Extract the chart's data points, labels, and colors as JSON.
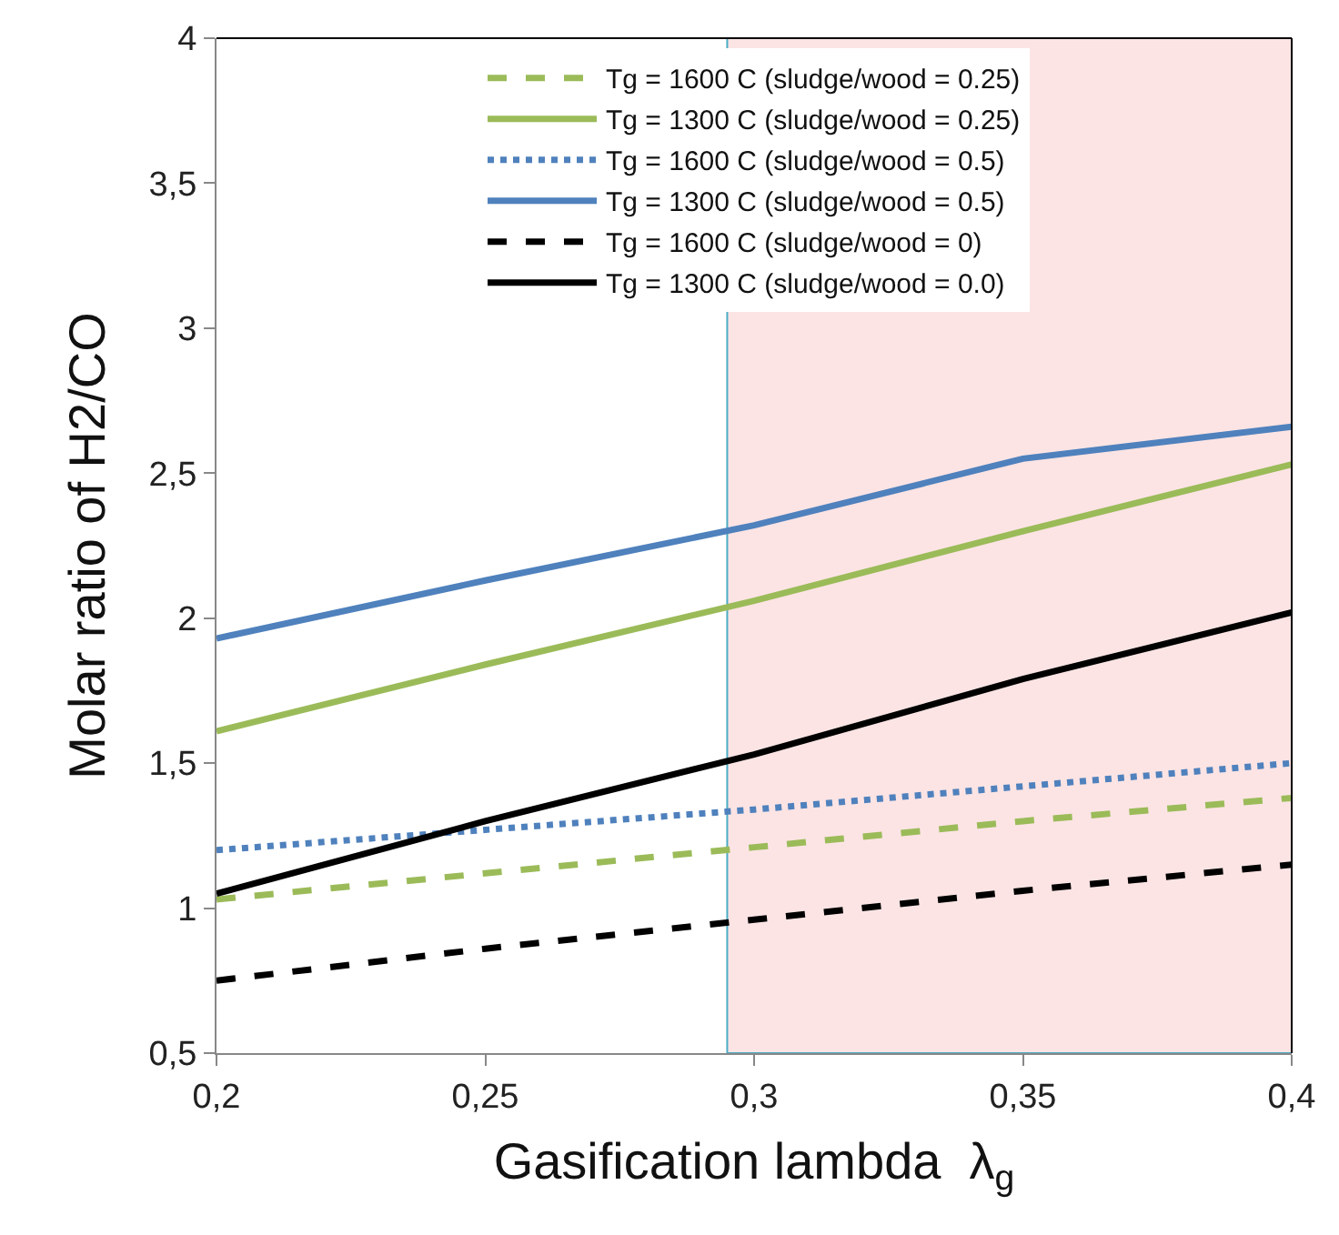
{
  "chart_data": {
    "type": "line",
    "xlabel": "Gasification lambda  λ$_{g}$",
    "ylabel": "Molar ratio of H2/CO",
    "x": [
      0.2,
      0.25,
      0.3,
      0.35,
      0.4
    ],
    "series": [
      {
        "name": "Tg = 1600 C (sludge/wood = 0.25)",
        "color": "#9bbb59",
        "line_style": "dashed",
        "values": [
          1.03,
          1.12,
          1.21,
          1.3,
          1.38
        ]
      },
      {
        "name": "Tg = 1300 C (sludge/wood = 0.25)",
        "color": "#9bbb59",
        "line_style": "solid",
        "values": [
          1.61,
          1.84,
          2.06,
          2.3,
          2.53
        ]
      },
      {
        "name": "Tg = 1600 C (sludge/wood = 0.5)",
        "color": "#4f81bd",
        "line_style": "dotted",
        "values": [
          1.2,
          1.27,
          1.34,
          1.42,
          1.5
        ]
      },
      {
        "name": "Tg = 1300 C (sludge/wood = 0.5)",
        "color": "#4f81bd",
        "line_style": "solid",
        "values": [
          1.93,
          2.13,
          2.32,
          2.55,
          2.66
        ]
      },
      {
        "name": "Tg = 1600 C (sludge/wood = 0)",
        "color": "#000000",
        "line_style": "dashed",
        "values": [
          0.75,
          0.86,
          0.96,
          1.06,
          1.15
        ]
      },
      {
        "name": "Tg = 1300 C (sludge/wood = 0.0)",
        "color": "#000000",
        "line_style": "solid",
        "values": [
          1.05,
          1.3,
          1.53,
          1.79,
          2.02
        ]
      }
    ],
    "xlim": [
      0.2,
      0.4
    ],
    "xticks": [
      {
        "value": 0.2,
        "label": "0,2"
      },
      {
        "value": 0.25,
        "label": "0,25"
      },
      {
        "value": 0.3,
        "label": "0,3"
      },
      {
        "value": 0.35,
        "label": "0,35"
      },
      {
        "value": 0.4,
        "label": "0,4"
      }
    ],
    "ylim": [
      0.5,
      4
    ],
    "yticks": [
      {
        "value": 0.5,
        "label": "0,5"
      },
      {
        "value": 1,
        "label": "1"
      },
      {
        "value": 1.5,
        "label": "1,5"
      },
      {
        "value": 2,
        "label": "2"
      },
      {
        "value": 2.5,
        "label": "2,5"
      },
      {
        "value": 3,
        "label": "3"
      },
      {
        "value": 3.5,
        "label": "3,5"
      },
      {
        "value": 4,
        "label": "4"
      }
    ],
    "bands": [
      {
        "axis": "x",
        "from": 0.295,
        "to": 0.4,
        "color": "#fce4e4"
      }
    ],
    "legend": "top",
    "grid": false,
    "marker": "none"
  }
}
